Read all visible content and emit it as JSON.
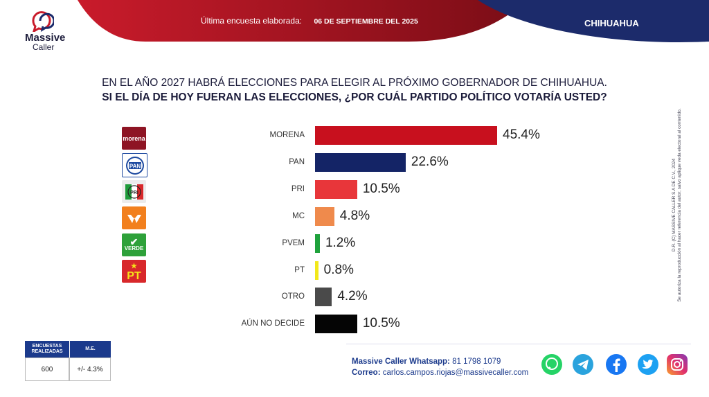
{
  "header": {
    "brand_line1": "Massive",
    "brand_line2": "Caller",
    "survey_label": "Última encuesta elaborada:",
    "survey_date": "06 DE SEPTIEMBRE DEL 2025",
    "state": "CHIHUAHUA"
  },
  "question": {
    "line1": "EN EL AÑO 2027 HABRÁ ELECCIONES PARA ELEGIR AL PRÓXIMO GOBERNADOR DE CHIHUAHUA.",
    "line2": "SI EL DÍA DE HOY FUERAN LAS ELECCIONES, ¿POR CUÁL PARTIDO POLÍTICO VOTARÍA USTED?"
  },
  "side_note": {
    "line1": "D.R. (C) MASSIVE CALLER S.A DE C.V., 2024",
    "line2": "Se autoriza la reproducción al hacer referencia del autor, salvo aplique veda electoral al contenido."
  },
  "party_logos": [
    {
      "name": "morena",
      "text": "morena",
      "color": "#a31a2a"
    },
    {
      "name": "pan",
      "text": "PAN",
      "color": "#1e4aa0"
    },
    {
      "name": "pri",
      "text": "PRI",
      "color": "#e0e0e0"
    },
    {
      "name": "mc",
      "text": "MC",
      "color": "#f2801e"
    },
    {
      "name": "pvem",
      "text": "VERDE",
      "color": "#2ea13a"
    },
    {
      "name": "pt",
      "text": "PT",
      "color": "#d8282b"
    }
  ],
  "chart_data": {
    "type": "bar",
    "orientation": "horizontal",
    "categories": [
      "MORENA",
      "PAN",
      "PRI",
      "MC",
      "PVEM",
      "PT",
      "OTRO",
      "AÚN NO DECIDE"
    ],
    "values": [
      45.4,
      22.6,
      10.5,
      4.8,
      1.2,
      0.8,
      4.2,
      10.5
    ],
    "value_labels": [
      "45.4%",
      "22.6%",
      "10.5%",
      "4.8%",
      "1.2%",
      "0.8%",
      "4.2%",
      "10.5%"
    ],
    "colors": [
      "#c8101e",
      "#142466",
      "#e8363a",
      "#ef8a4c",
      "#1fa23c",
      "#f2e81a",
      "#4a4a4a",
      "#050505"
    ],
    "xlim": [
      0,
      50
    ]
  },
  "stats_table": {
    "col1_header": "ENCUESTAS REALIZADAS",
    "col2_header": "M.E.",
    "col1_value": "600",
    "col2_value": "+/- 4.3%"
  },
  "contact": {
    "whatsapp_label": "Massive Caller Whatsapp:",
    "whatsapp_value": "81 1798 1079",
    "email_label": "Correo:",
    "email_value": "carlos.campos.riojas@massivecaller.com"
  },
  "social": [
    {
      "icon": "whatsapp-icon",
      "color": "#25d366"
    },
    {
      "icon": "telegram-icon",
      "color": "#2aa3dd"
    },
    {
      "icon": "facebook-icon",
      "color": "#1877f2"
    },
    {
      "icon": "twitter-icon",
      "color": "#1da1f2"
    },
    {
      "icon": "instagram-icon",
      "color": "#d6287a"
    }
  ]
}
